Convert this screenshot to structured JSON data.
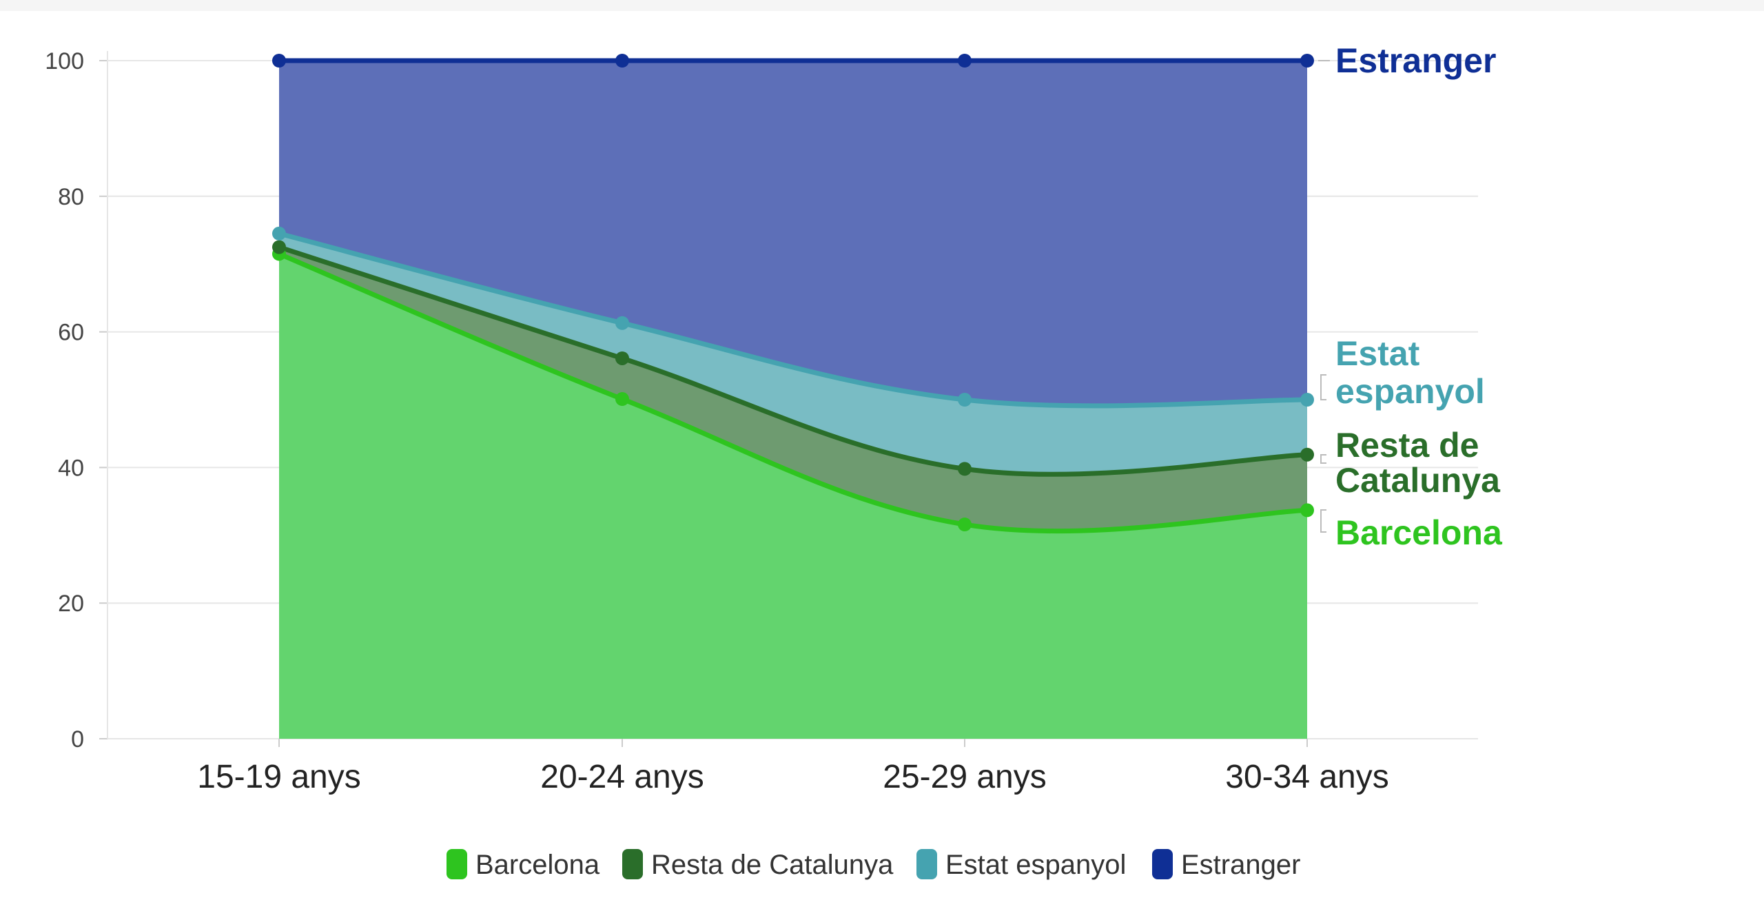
{
  "chart_data": {
    "type": "area",
    "stacked": true,
    "categories": [
      "15-19 anys",
      "20-24 anys",
      "25-29 anys",
      "30-34 anys"
    ],
    "ylim": [
      0,
      100
    ],
    "yticks": [
      0,
      20,
      40,
      60,
      80,
      100
    ],
    "grid": true,
    "legend_position": "bottom",
    "series": [
      {
        "name": "Barcelona",
        "color": "#2ec41f",
        "values": [
          71.5,
          50.1,
          31.6,
          33.7
        ],
        "end_label": [
          "Barcelona"
        ]
      },
      {
        "name": "Resta de Catalunya",
        "color": "#2a6e2a",
        "values": [
          1.0,
          6.0,
          8.2,
          8.2
        ],
        "end_label": [
          "Resta de",
          "Catalunya"
        ]
      },
      {
        "name": "Estat espanyol",
        "color": "#45a3b0",
        "values": [
          2.0,
          5.2,
          10.2,
          8.1
        ],
        "end_label": [
          "Estat",
          "espanyol"
        ]
      },
      {
        "name": "Estranger",
        "color": "#0f2f95",
        "values": [
          25.5,
          38.7,
          50.0,
          50.0
        ],
        "end_label": [
          "Estranger"
        ]
      }
    ]
  }
}
